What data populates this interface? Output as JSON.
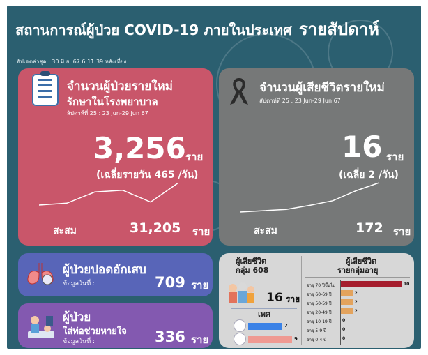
{
  "header": {
    "title": "สถานการณ์ผู้ป่วย COVID-19 ภายในประเทศ",
    "period": "รายสัปดาห์",
    "updated": "อัปเดตล่าสุด : 30 มิ.ย. 67 6:11:39 หลังเที่ยง"
  },
  "new_cases": {
    "title": "จำนวนผู้ป่วยรายใหม่",
    "subtitle": "รักษาในโรงพยาบาล",
    "week": "สัปดาห์ที่ 25 : 23 Jun-29 Jun 67",
    "value": "3,256",
    "unit": "ราย",
    "daily_avg": "(เฉลี่ยรายวัน 465 /วัน)",
    "cumulative_label": "สะสม",
    "cumulative_value": "31,205",
    "cumulative_unit": "ราย",
    "trend": [
      40,
      45,
      75,
      80,
      48,
      100
    ]
  },
  "deaths": {
    "title": "จำนวนผู้เสียชีวิตรายใหม่",
    "week": "สัปดาห์ที่ 25 : 23 Jun-29 Jun 67",
    "value": "16",
    "unit": "ราย",
    "daily_avg": "(เฉลี่ย 2 /วัน)",
    "cumulative_label": "สะสม",
    "cumulative_value": "172",
    "cumulative_unit": "ราย",
    "trend": [
      8,
      10,
      12,
      18,
      25,
      40,
      52
    ]
  },
  "pneumonia": {
    "title": "ผู้ป่วยปอดอักเสบ",
    "note": "ข้อมูลวันที่ :",
    "value": "709",
    "unit": "ราย"
  },
  "ventilator": {
    "title": "ผู้ป่วย",
    "subtitle": "ใส่ท่อช่วยหายใจ",
    "note": "ข้อมูลวันที่ :",
    "value": "336",
    "unit": "ราย"
  },
  "group608": {
    "title": "ผู้เสียชีวิต",
    "subtitle": "กลุ่ม 608",
    "value": "16",
    "unit": "ราย",
    "sex_title": "เพศ",
    "male": 7,
    "female": 9,
    "male_color": "#3b82e6",
    "female_color": "#ef9a92"
  },
  "age_groups": {
    "title": "ผู้เสียชีวิต",
    "subtitle": "รายกลุ่มอายุ",
    "rows": [
      {
        "label": "อายุ 70 ปีขึ้นไป",
        "value": 10,
        "color": "#a51d2d"
      },
      {
        "label": "อายุ 60-69 ปี",
        "value": 2,
        "color": "#e3a35d"
      },
      {
        "label": "อายุ 50-59 ปี",
        "value": 2,
        "color": "#e3a35d"
      },
      {
        "label": "อายุ 20-49 ปี",
        "value": 2,
        "color": "#e3a35d"
      },
      {
        "label": "อายุ 10-19 ปี",
        "value": 0,
        "color": "#e3a35d"
      },
      {
        "label": "อายุ 5-9 ปี",
        "value": 0,
        "color": "#e3a35d"
      },
      {
        "label": "อายุ 0-4 ปี",
        "value": 0,
        "color": "#e3a35d"
      }
    ]
  }
}
